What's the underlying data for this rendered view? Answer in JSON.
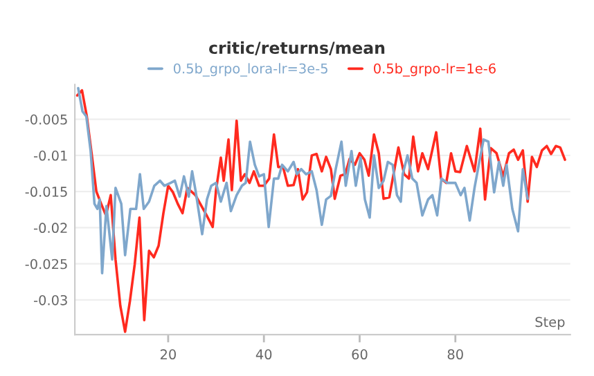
{
  "chart_data": {
    "type": "line",
    "title": "critic/returns/mean",
    "xlabel": "Step",
    "xlim": [
      0.5,
      104
    ],
    "xticks": [
      20,
      40,
      60,
      80
    ],
    "ylim": [
      -0.0348,
      -0.0002
    ],
    "yticks": [
      -0.005,
      -0.01,
      -0.015,
      -0.02,
      -0.025,
      -0.03
    ],
    "grid": "y",
    "legend": "top",
    "marker": "none",
    "line_style": "solid",
    "series": [
      {
        "name": "0.5b_grpo_lora-lr=3e-5",
        "color": "#7fa7cc",
        "x": [
          1.2,
          2.1,
          2.9,
          3.8,
          4.6,
          5.2,
          5.7,
          6.2,
          7.1,
          8.3,
          9.0,
          10.2,
          11.0,
          12.1,
          13.3,
          14.1,
          14.9,
          16.0,
          17.1,
          18.3,
          19.2,
          20.5,
          21.4,
          22.4,
          23.3,
          24.3,
          25.0,
          25.7,
          27.1,
          28.1,
          29.0,
          30.0,
          31.0,
          32.2,
          33.1,
          34.3,
          35.4,
          36.2,
          37.1,
          38.1,
          39.0,
          40.0,
          41.0,
          42.1,
          43.0,
          43.8,
          45.0,
          46.2,
          46.9,
          47.8,
          48.8,
          50.0,
          51.0,
          52.1,
          53.0,
          54.0,
          55.0,
          56.2,
          57.1,
          58.3,
          59.2,
          60.2,
          61.1,
          62.1,
          63.0,
          64.0,
          65.0,
          65.9,
          66.9,
          67.8,
          68.6,
          69.0,
          70.0,
          71.0,
          71.9,
          73.1,
          74.3,
          75.2,
          76.2,
          77.1,
          78.3,
          79.2,
          80.0,
          81.1,
          81.9,
          83.0,
          84.0,
          85.0,
          85.9,
          86.9,
          88.1,
          89.1,
          90.0,
          90.7,
          91.9,
          93.1,
          94.1,
          95.1
        ],
        "values": [
          -0.0007,
          -0.0039,
          -0.0046,
          -0.0094,
          -0.0167,
          -0.0174,
          -0.0161,
          -0.0263,
          -0.017,
          -0.0244,
          -0.0145,
          -0.0167,
          -0.0238,
          -0.0174,
          -0.0174,
          -0.0126,
          -0.0174,
          -0.0164,
          -0.0142,
          -0.0135,
          -0.0142,
          -0.0138,
          -0.0135,
          -0.0157,
          -0.0129,
          -0.0157,
          -0.0122,
          -0.0148,
          -0.0209,
          -0.0161,
          -0.0142,
          -0.0138,
          -0.0164,
          -0.0138,
          -0.0177,
          -0.0155,
          -0.0142,
          -0.0138,
          -0.0081,
          -0.0113,
          -0.0129,
          -0.0126,
          -0.0199,
          -0.0132,
          -0.0132,
          -0.0113,
          -0.0122,
          -0.0109,
          -0.0126,
          -0.0119,
          -0.0126,
          -0.0122,
          -0.0148,
          -0.0196,
          -0.0161,
          -0.0156,
          -0.0119,
          -0.0081,
          -0.0142,
          -0.0094,
          -0.0142,
          -0.0103,
          -0.0161,
          -0.0186,
          -0.01,
          -0.0145,
          -0.0135,
          -0.0109,
          -0.0113,
          -0.0155,
          -0.0164,
          -0.0126,
          -0.01,
          -0.0132,
          -0.0138,
          -0.0183,
          -0.0161,
          -0.0155,
          -0.0183,
          -0.0132,
          -0.0138,
          -0.0138,
          -0.0138,
          -0.0155,
          -0.0145,
          -0.019,
          -0.0145,
          -0.0109,
          -0.0078,
          -0.0081,
          -0.0151,
          -0.0109,
          -0.0142,
          -0.0113,
          -0.0174,
          -0.0205,
          -0.0119,
          -0.016
        ]
      },
      {
        "name": "0.5b_grpo-lr=1e-6",
        "color": "#ff2a1f",
        "x": [
          1,
          2,
          3,
          4,
          5,
          6,
          7,
          8,
          9,
          10,
          11,
          12,
          13,
          14,
          15,
          16,
          17,
          18,
          19,
          20,
          21,
          22,
          23,
          24,
          25.7,
          27.8,
          29.3,
          30.0,
          31.0,
          31.6,
          32.6,
          33.3,
          34.3,
          35.2,
          36.0,
          37.0,
          37.9,
          39.0,
          40.0,
          41.1,
          42.1,
          43.0,
          44.0,
          45.0,
          46.2,
          47.1,
          48.1,
          49.0,
          50.0,
          51.0,
          52.1,
          53.0,
          54.0,
          54.8,
          56.0,
          57.0,
          57.9,
          59.0,
          60.0,
          61.0,
          61.9,
          63.0,
          64.0,
          65.0,
          66.2,
          68.1,
          69.3,
          70.3,
          71.2,
          72.2,
          73.1,
          74.3,
          76.0,
          77.0,
          78.1,
          79.1,
          80.0,
          81.0,
          82.4,
          84.0,
          85.2,
          86.2,
          87.4,
          88.6,
          90.0,
          91.2,
          92.2,
          93.1,
          94.1,
          95.1,
          96.0,
          97.0,
          98.1,
          99.1,
          100.0,
          101.0,
          101.9,
          102.9
        ],
        "values": [
          -0.0017,
          -0.001,
          -0.0046,
          -0.0097,
          -0.015,
          -0.0167,
          -0.0183,
          -0.0155,
          -0.0244,
          -0.0308,
          -0.0344,
          -0.0302,
          -0.0251,
          -0.0186,
          -0.0328,
          -0.0232,
          -0.0241,
          -0.0225,
          -0.018,
          -0.0142,
          -0.0151,
          -0.0167,
          -0.018,
          -0.0145,
          -0.0155,
          -0.018,
          -0.0199,
          -0.0148,
          -0.0103,
          -0.0135,
          -0.0078,
          -0.0148,
          -0.0052,
          -0.0135,
          -0.0126,
          -0.0138,
          -0.0122,
          -0.0142,
          -0.0142,
          -0.0132,
          -0.0071,
          -0.0116,
          -0.0116,
          -0.0142,
          -0.0141,
          -0.0119,
          -0.0161,
          -0.0151,
          -0.01,
          -0.0098,
          -0.0122,
          -0.0102,
          -0.0119,
          -0.016,
          -0.0128,
          -0.0126,
          -0.0105,
          -0.0113,
          -0.0097,
          -0.0106,
          -0.0128,
          -0.0071,
          -0.0097,
          -0.016,
          -0.0158,
          -0.0089,
          -0.0126,
          -0.0132,
          -0.0074,
          -0.0122,
          -0.0097,
          -0.0119,
          -0.0068,
          -0.0132,
          -0.0138,
          -0.0097,
          -0.0122,
          -0.0123,
          -0.0087,
          -0.0122,
          -0.0063,
          -0.0161,
          -0.009,
          -0.0097,
          -0.0129,
          -0.0097,
          -0.0092,
          -0.0106,
          -0.0093,
          -0.0164,
          -0.0102,
          -0.0116,
          -0.0093,
          -0.0087,
          -0.0098,
          -0.0087,
          -0.0089,
          -0.0106
        ]
      }
    ]
  }
}
